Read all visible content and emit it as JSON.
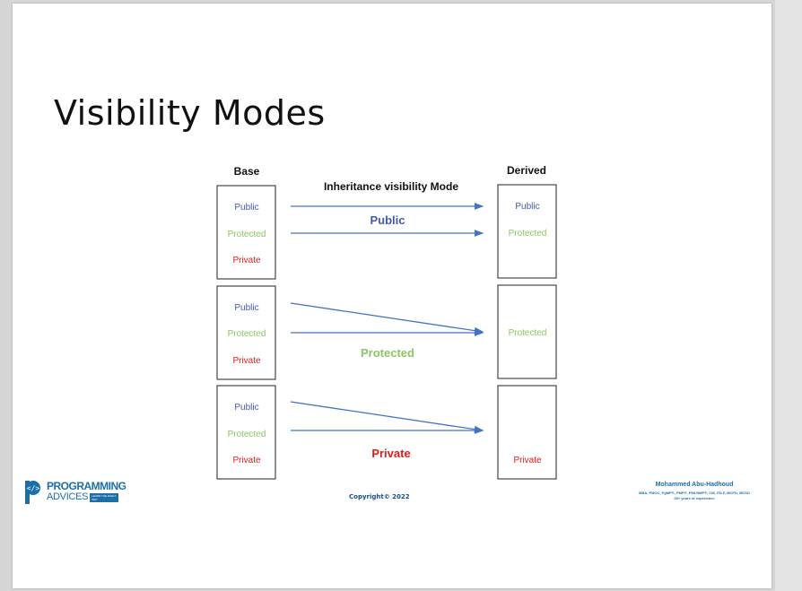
{
  "slide": {
    "title": "Visibility Modes"
  },
  "diagram": {
    "base_label": "Base",
    "derived_label": "Derived",
    "mode_heading": "Inheritance visibility Mode",
    "colors": {
      "public": "#3f5ca8",
      "protected": "#8cc562",
      "private": "#e01b1b",
      "arrow": "#4472c4",
      "box": "#222222"
    },
    "rows": [
      {
        "mode": "Public",
        "mode_color": "#3f5ca8",
        "base": [
          "Public",
          "Protected",
          "Private"
        ],
        "derived": [
          "Public",
          "Protected"
        ]
      },
      {
        "mode": "Protected",
        "mode_color": "#8cc562",
        "base": [
          "Public",
          "Protected",
          "Private"
        ],
        "derived": [
          "Protected"
        ]
      },
      {
        "mode": "Private",
        "mode_color": "#e01b1b",
        "base": [
          "Public",
          "Protected",
          "Private"
        ],
        "derived": [
          "Private"
        ]
      }
    ]
  },
  "footer": {
    "copyright": "Copyright© 2022",
    "author_name": "Mohammed Abu-Hadhoud",
    "author_credentials": "MBA, PMOC, PgMP®, PMP®, PMI-RMP®, CM, ITILF, MCPD, MCSD",
    "author_experience": "26+ years of experience",
    "logo_line1": "PROGRAMMING",
    "logo_line2": "ADVICES",
    "logo_tagline": "LEARN THE RIGHT WAY"
  }
}
